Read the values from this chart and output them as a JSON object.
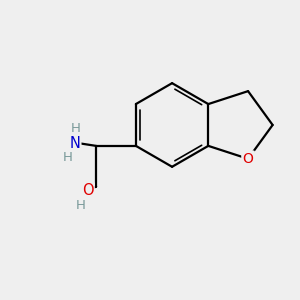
{
  "background_color": "#efefef",
  "bond_color": "#000000",
  "bond_width": 1.6,
  "N_color": "#0000cd",
  "O_color": "#e00000",
  "H_color": "#7a9a9a",
  "figsize": [
    3.0,
    3.0
  ],
  "dpi": 100,
  "xlim": [
    0,
    10
  ],
  "ylim": [
    0,
    10
  ]
}
